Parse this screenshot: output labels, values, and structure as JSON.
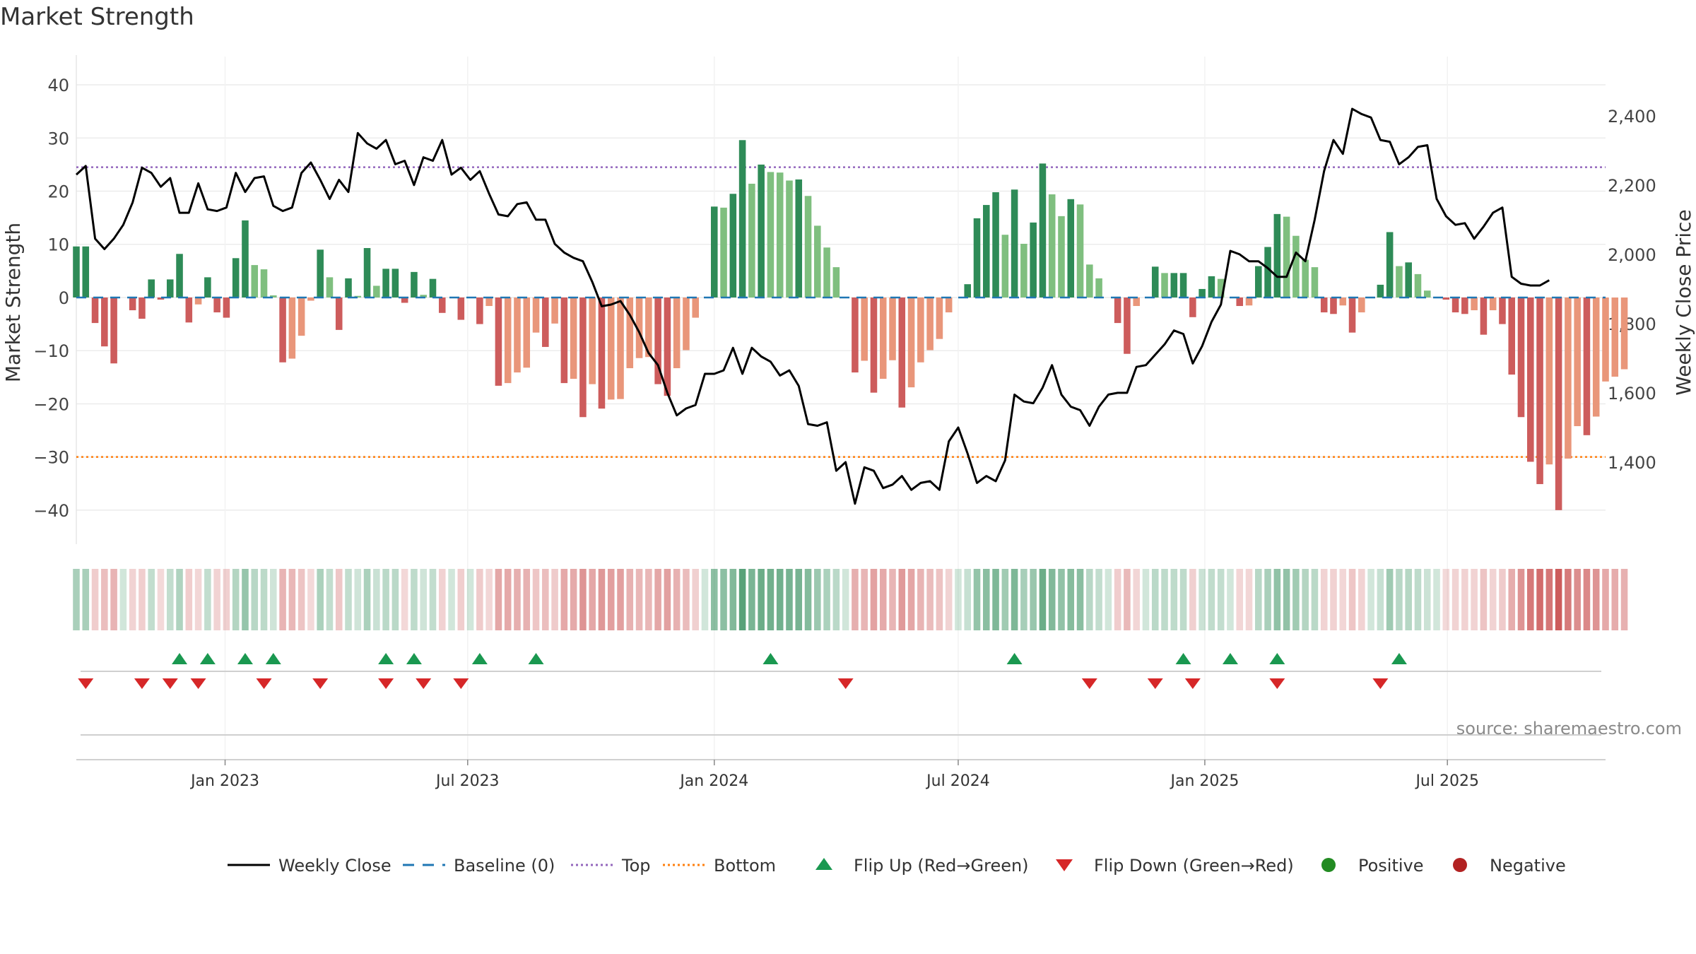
{
  "chart_data": {
    "type": "bar",
    "title": "Market Strength",
    "ylabel": "Market Strength",
    "y2label": "Weekly Close Price",
    "ylim": [
      -44,
      42
    ],
    "y2lim": [
      1200,
      2520
    ],
    "yticks": [
      40,
      30,
      20,
      10,
      0,
      -10,
      -20,
      -30,
      -40
    ],
    "yticklabels": [
      "40",
      "30",
      "20",
      "10",
      "0",
      "−10",
      "−20",
      "−30",
      "−40"
    ],
    "y2ticks": [
      2400,
      2200,
      2000,
      1800,
      1600,
      1400
    ],
    "y2ticklabels": [
      "2,400",
      "2,200",
      "2,000",
      "1,800",
      "1,600",
      "1,400"
    ],
    "xlim": [
      "2022-09-12",
      "2025-10-27"
    ],
    "xticks": [
      "2023-01-01",
      "2023-07-01",
      "2024-01-01",
      "2024-07-01",
      "2025-01-01",
      "2025-07-01"
    ],
    "xticklabels": [
      "Jan 2023",
      "Jul 2023",
      "Jan 2024",
      "Jul 2024",
      "Jan 2025",
      "Jul 2025"
    ],
    "grid": true,
    "start_week": "2022-09-12",
    "top_line": 24.5,
    "bottom_line": -30,
    "strength": [
      9.6,
      9.6,
      -4.8,
      -9.2,
      -12.4,
      0,
      -2.4,
      -4.0,
      3.4,
      -0.4,
      3.4,
      8.2,
      -4.7,
      -1.3,
      3.8,
      -2.8,
      -3.8,
      7.4,
      14.5,
      6.1,
      5.3,
      0.4,
      -12.2,
      -11.5,
      -7.2,
      -0.6,
      9.0,
      3.8,
      -6.1,
      3.6,
      0.3,
      9.3,
      2.2,
      5.4,
      5.4,
      -1.0,
      4.8,
      0.5,
      3.5,
      -2.9,
      0,
      -4.2,
      0,
      -5.0,
      -1.6,
      -16.6,
      -16.1,
      -14.1,
      -13.2,
      -6.6,
      -9.3,
      -4.9,
      -16.1,
      -15.3,
      -22.5,
      -16.3,
      -20.9,
      -19.2,
      -19.1,
      -13.3,
      -11.4,
      -11.2,
      -16.3,
      -18.5,
      -13.3,
      -9.9,
      -3.8,
      0,
      17.1,
      16.9,
      19.5,
      29.6,
      21.4,
      25.0,
      23.6,
      23.5,
      22.0,
      22.2,
      19.1,
      13.5,
      9.4,
      5.7,
      0,
      -14.1,
      -11.9,
      -17.9,
      -15.3,
      -11.8,
      -20.7,
      -16.9,
      -12.2,
      -9.9,
      -7.8,
      -2.8,
      0,
      2.5,
      14.9,
      17.4,
      19.8,
      11.8,
      20.3,
      10.1,
      14.1,
      25.2,
      19.4,
      15.3,
      18.5,
      17.5,
      6.2,
      3.6,
      0,
      -4.8,
      -10.6,
      -1.6,
      0,
      5.8,
      4.6,
      4.6,
      4.6,
      -3.7,
      1.6,
      4.0,
      3.5,
      0,
      -1.6,
      -1.5,
      5.9,
      9.5,
      15.7,
      15.2,
      11.6,
      7.1,
      5.7,
      -2.8,
      -3.1,
      -1.5,
      -6.6,
      -2.8,
      0,
      2.4,
      12.3,
      5.9,
      6.6,
      4.4,
      1.3,
      0,
      -0.4,
      -2.8,
      -3.1,
      -2.4,
      -7.0,
      -2.4,
      -5.0,
      -14.5,
      -22.5,
      -30.9,
      -35.1,
      -31.4,
      -40.0,
      -30.3,
      -24.2,
      -25.9,
      -22.4,
      -15.8,
      -14.9,
      -13.5
    ],
    "weekly_close": [
      2230,
      2255,
      2045,
      2015,
      2045,
      2085,
      2150,
      2250,
      2235,
      2195,
      2220,
      2120,
      2120,
      2205,
      2130,
      2125,
      2135,
      2235,
      2180,
      2220,
      2225,
      2140,
      2125,
      2135,
      2235,
      2265,
      2215,
      2160,
      2215,
      2180,
      2350,
      2320,
      2305,
      2330,
      2260,
      2270,
      2200,
      2280,
      2270,
      2330,
      2230,
      2250,
      2215,
      2240,
      2175,
      2115,
      2110,
      2145,
      2150,
      2100,
      2100,
      2030,
      2005,
      1990,
      1980,
      1920,
      1850,
      1855,
      1865,
      1825,
      1775,
      1715,
      1680,
      1600,
      1535,
      1555,
      1565,
      1655,
      1655,
      1665,
      1730,
      1655,
      1730,
      1705,
      1690,
      1650,
      1665,
      1620,
      1510,
      1505,
      1515,
      1375,
      1400,
      1280,
      1385,
      1375,
      1325,
      1335,
      1360,
      1320,
      1340,
      1345,
      1320,
      1460,
      1500,
      1425,
      1340,
      1360,
      1345,
      1405,
      1595,
      1575,
      1570,
      1615,
      1680,
      1595,
      1560,
      1550,
      1505,
      1560,
      1595,
      1600,
      1600,
      1675,
      1680,
      1710,
      1740,
      1780,
      1770,
      1685,
      1735,
      1805,
      1855,
      2010,
      2000,
      1980,
      1980,
      1960,
      1935,
      1935,
      2005,
      1980,
      2100,
      2240,
      2330,
      2290,
      2420,
      2405,
      2395,
      2330,
      2325,
      2260,
      2280,
      2310,
      2315,
      2160,
      2110,
      2085,
      2090,
      2045,
      2080,
      2120,
      2135,
      1935,
      1915,
      1910,
      1910,
      1925
    ],
    "flip_up_weeks": [
      11,
      14,
      18,
      21,
      33,
      36,
      43,
      49,
      74,
      100,
      118,
      123,
      128,
      141
    ],
    "flip_down_weeks": [
      1,
      7,
      10,
      13,
      20,
      26,
      33,
      37,
      41,
      82,
      108,
      115,
      119,
      128,
      139
    ],
    "colors": {
      "pos_dark": "#2e8b57",
      "pos_light": "#7fbf7f",
      "neg_dark": "#cd5c5c",
      "neg_light": "#e9967a",
      "line": "#000000",
      "baseline": "#1f77b4",
      "top": "#9467bd",
      "bottom": "#ff7f0e",
      "flip_up": "#1a9850",
      "flip_down": "#d62728",
      "positive": "#228b22",
      "negative": "#b22222",
      "grid": "#ececec"
    },
    "legend": {
      "placement": "bottom",
      "items": [
        {
          "label": "Weekly Close",
          "marker": "line"
        },
        {
          "label": "Baseline (0)",
          "marker": "dash"
        },
        {
          "label": "Top",
          "marker": "dot-purple"
        },
        {
          "label": "Bottom",
          "marker": "dot-orange"
        },
        {
          "label": "Flip Up (Red→Green)",
          "marker": "tri-up"
        },
        {
          "label": "Flip Down (Green→Red)",
          "marker": "tri-down"
        },
        {
          "label": "Positive",
          "marker": "circle-green"
        },
        {
          "label": "Negative",
          "marker": "circle-red"
        }
      ]
    },
    "source": "source: sharemaestro.com"
  }
}
